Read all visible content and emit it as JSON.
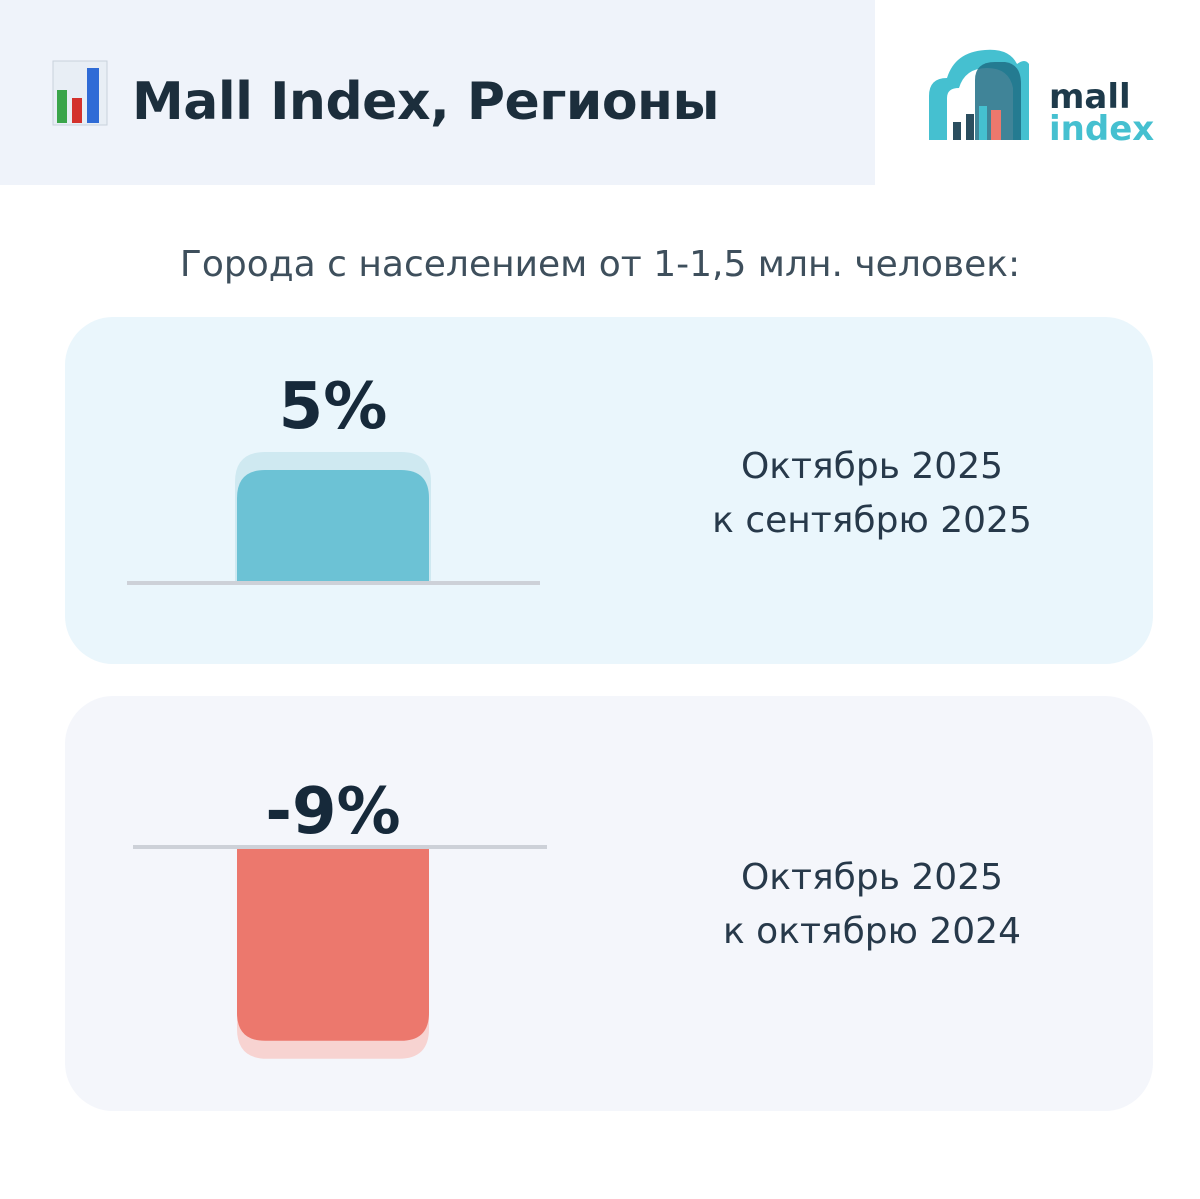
{
  "header": {
    "title": "Mall Index, Регионы",
    "logo_line1": "mall",
    "logo_line2": "index"
  },
  "subtitle": "Города с населением от 1-1,5 млн. человек:",
  "colors": {
    "positive_bar": "#6cc2d5",
    "positive_bar_shadow": "#cfe9f1",
    "negative_bar": "#ec786d",
    "negative_bar_shadow": "#f7d3d1",
    "baseline": "#cdd1d8",
    "logo_teal": "#45c0d0"
  },
  "chart_data": [
    {
      "type": "bar",
      "categories": [
        "Октябрь 2025 к сентябрю 2025"
      ],
      "values": [
        5
      ],
      "labels": [
        "5%"
      ],
      "caption_line1": "Октябрь 2025",
      "caption_line2": "к сентябрю 2025",
      "ylim": [
        0,
        5
      ]
    },
    {
      "type": "bar",
      "categories": [
        "Октябрь 2025 к октябрю 2024"
      ],
      "values": [
        -9
      ],
      "labels": [
        "-9%"
      ],
      "caption_line1": "Октябрь 2025",
      "caption_line2": "к октябрю 2024",
      "ylim": [
        -9,
        0
      ]
    }
  ]
}
